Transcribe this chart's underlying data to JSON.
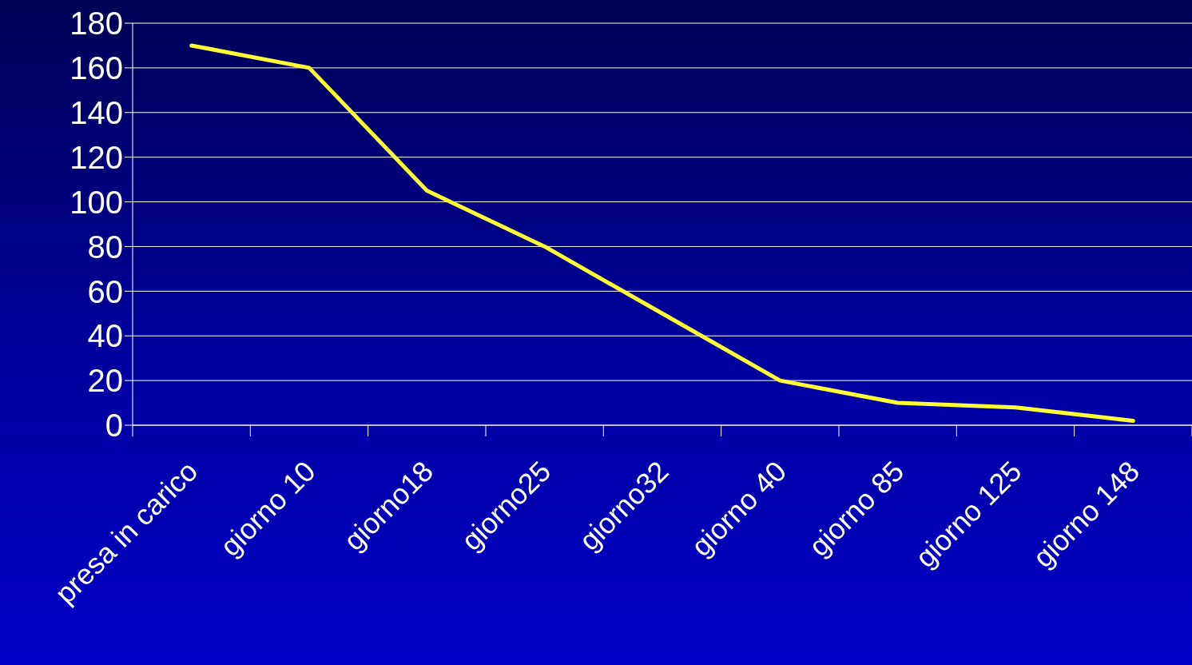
{
  "chart_data": {
    "type": "line",
    "categories": [
      "presa in carico",
      "giorno 10",
      "giorno18",
      "giorno25",
      "giorno32",
      "giorno 40",
      "giorno 85",
      "giorno 125",
      "giorno 148"
    ],
    "series": [
      {
        "color": "#ffff33",
        "values": [
          170,
          160,
          105,
          80,
          50,
          20,
          10,
          8,
          2
        ]
      }
    ],
    "ylim": [
      0,
      180
    ],
    "yticks": [
      0,
      20,
      40,
      60,
      80,
      100,
      120,
      140,
      160,
      180
    ],
    "grid": "y",
    "legend": false,
    "marker": "none",
    "line_style": "solid"
  }
}
